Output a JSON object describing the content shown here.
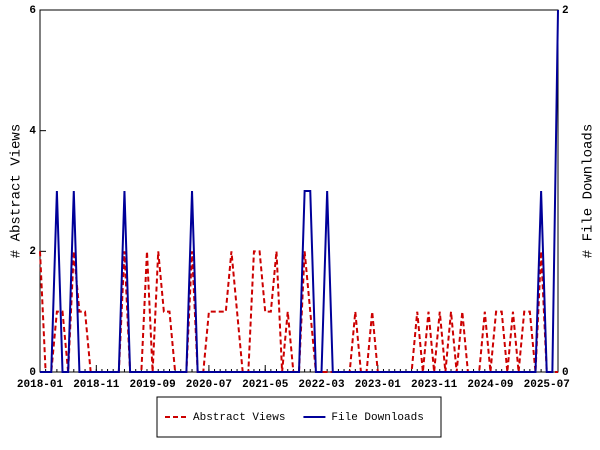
{
  "chart_data": {
    "type": "line",
    "y_label": "# Abstract Views",
    "y2_label": "# File Downloads",
    "x": [
      "2018-01",
      "2018-02",
      "2018-03",
      "2018-04",
      "2018-05",
      "2018-06",
      "2018-07",
      "2018-08",
      "2018-09",
      "2018-10",
      "2018-11",
      "2018-12",
      "2019-01",
      "2019-02",
      "2019-03",
      "2019-04",
      "2019-05",
      "2019-06",
      "2019-07",
      "2019-08",
      "2019-09",
      "2019-10",
      "2019-11",
      "2019-12",
      "2020-01",
      "2020-02",
      "2020-03",
      "2020-04",
      "2020-05",
      "2020-06",
      "2020-07",
      "2020-08",
      "2020-09",
      "2020-10",
      "2020-11",
      "2020-12",
      "2021-01",
      "2021-02",
      "2021-03",
      "2021-04",
      "2021-05",
      "2021-06",
      "2021-07",
      "2021-08",
      "2021-09",
      "2021-10",
      "2021-11",
      "2021-12",
      "2022-01",
      "2022-02",
      "2022-03",
      "2022-04",
      "2022-05",
      "2022-06",
      "2022-07",
      "2022-08",
      "2022-09",
      "2022-10",
      "2022-11",
      "2022-12",
      "2023-01",
      "2023-02",
      "2023-03",
      "2023-04",
      "2023-05",
      "2023-06",
      "2023-07",
      "2023-08",
      "2023-09",
      "2023-10",
      "2023-11",
      "2023-12",
      "2024-01",
      "2024-02",
      "2024-03",
      "2024-04",
      "2024-05",
      "2024-06",
      "2024-07",
      "2024-08",
      "2024-09",
      "2024-10",
      "2024-11",
      "2024-12",
      "2025-01",
      "2025-02",
      "2025-03",
      "2025-04",
      "2025-05",
      "2025-06",
      "2025-07",
      "2025-08",
      "2025-09"
    ],
    "xticks": [
      "2018-01",
      "2018-11",
      "2019-09",
      "2020-07",
      "2021-05",
      "2022-03",
      "2023-01",
      "2023-11",
      "2024-09",
      "2025-07"
    ],
    "series": [
      {
        "name": "Abstract Views",
        "color": "#cc0000",
        "dash": true,
        "values": [
          2,
          0,
          0,
          1,
          1,
          0,
          2,
          1,
          1,
          0,
          0,
          0,
          0,
          0,
          0,
          2,
          0,
          0,
          0,
          2,
          0,
          2,
          1,
          1,
          0,
          0,
          0,
          2,
          0,
          0,
          1,
          1,
          1,
          1,
          2,
          1,
          0,
          0,
          2,
          2,
          1,
          1,
          2,
          0,
          1,
          0,
          0,
          2,
          1,
          0,
          0,
          0,
          0,
          0,
          0,
          0,
          1,
          0,
          0,
          1,
          0,
          0,
          0,
          0,
          0,
          0,
          0,
          1,
          0,
          1,
          0,
          1,
          0,
          1,
          0,
          1,
          0,
          0,
          0,
          1,
          0,
          1,
          1,
          0,
          1,
          0,
          1,
          1,
          0,
          2,
          0,
          0,
          0
        ]
      },
      {
        "name": "File Downloads",
        "color": "#000099",
        "axis": "y2",
        "values": [
          0,
          0,
          0,
          1,
          0,
          0,
          1,
          0,
          0,
          0,
          0,
          0,
          0,
          0,
          0,
          1,
          0,
          0,
          0,
          0,
          0,
          0,
          0,
          0,
          0,
          0,
          0,
          1,
          0,
          0,
          0,
          0,
          0,
          0,
          0,
          0,
          0,
          0,
          0,
          0,
          0,
          0,
          0,
          0,
          0,
          0,
          0,
          1,
          1,
          0,
          0,
          1,
          0,
          0,
          0,
          0,
          0,
          0,
          0,
          0,
          0,
          0,
          0,
          0,
          0,
          0,
          0,
          0,
          0,
          0,
          0,
          0,
          0,
          0,
          0,
          0,
          0,
          0,
          0,
          0,
          0,
          0,
          0,
          0,
          0,
          0,
          0,
          0,
          0,
          1,
          0,
          0,
          2
        ]
      }
    ],
    "ylim": [
      0,
      6
    ],
    "yticks": [
      0,
      2,
      4,
      6
    ],
    "y2lim": [
      0,
      2
    ],
    "y2ticks": [
      0,
      2
    ],
    "legend": "bottom"
  }
}
